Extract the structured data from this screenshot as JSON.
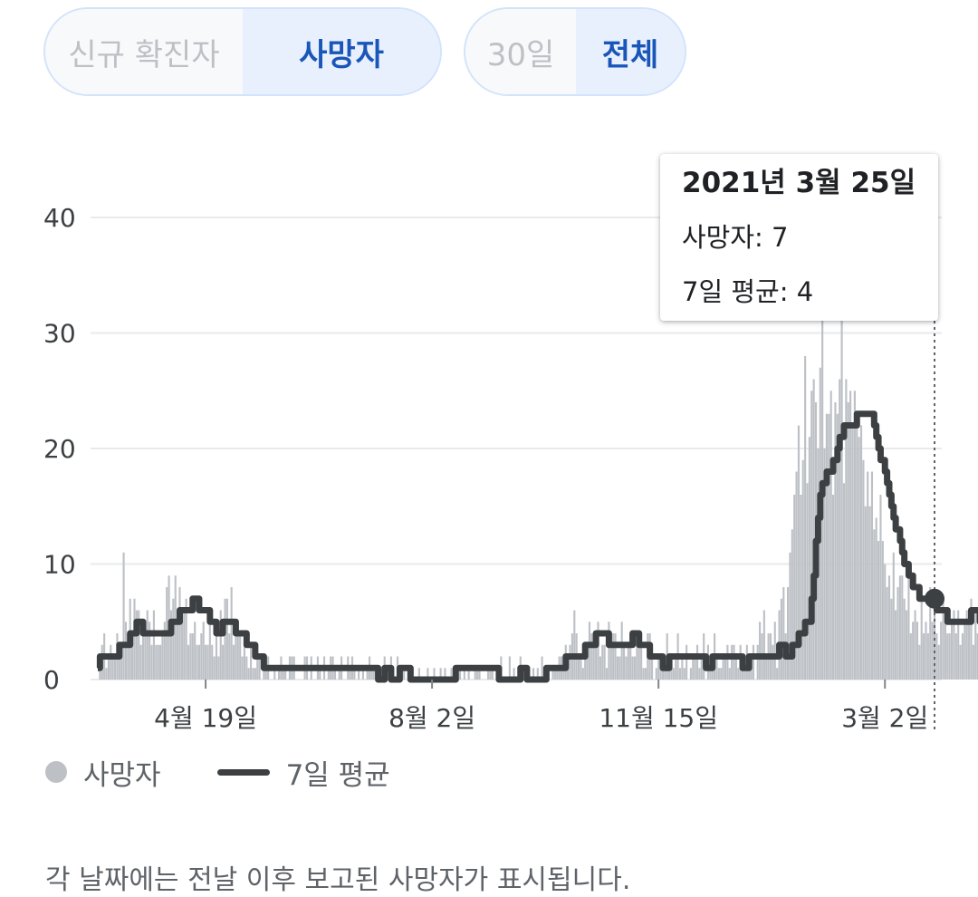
{
  "toggles": {
    "metric": [
      {
        "label": "신규 확진자",
        "selected": false
      },
      {
        "label": "사망자",
        "selected": true
      }
    ],
    "range": [
      {
        "label": "30일",
        "selected": false
      },
      {
        "label": "전체",
        "selected": true
      }
    ]
  },
  "tooltip": {
    "date": "2021년 3월 25일",
    "deaths_label": "사망자: 7",
    "avg_label": "7일 평균: 4"
  },
  "legend": {
    "deaths": "사망자",
    "avg": "7일 평균"
  },
  "note": "각 날짜에는 전날 이후 보고된 사망자가 표시됩니다.",
  "colors": {
    "bars": "#bdc1c6",
    "average_line": "#3c4043",
    "gridline": "#e8eaed",
    "selected_text": "#1a56b8"
  },
  "chart_data": {
    "type": "bar",
    "title": "",
    "xlabel": "",
    "ylabel": "",
    "ylim": [
      0,
      40
    ],
    "yticks": [
      "0",
      "10",
      "20",
      "30",
      "40"
    ],
    "xticks": [
      {
        "day": 50,
        "label": "4월 19일"
      },
      {
        "day": 155,
        "label": "8월 2일"
      },
      {
        "day": 260,
        "label": "11월 15일"
      },
      {
        "day": 365,
        "label": "3월 2일"
      }
    ],
    "day_range": [
      0,
      388
    ],
    "highlight_day": 388,
    "series": [
      {
        "name": "사망자",
        "kind": "bar",
        "values": [
          0,
          1,
          3,
          4,
          1,
          2,
          3,
          2,
          2,
          4,
          3,
          3,
          11,
          5,
          4,
          7,
          3,
          7,
          6,
          6,
          3,
          4,
          4,
          6,
          5,
          3,
          6,
          3,
          3,
          3,
          4,
          5,
          8,
          9,
          6,
          7,
          9,
          5,
          8,
          5,
          6,
          7,
          3,
          4,
          4,
          5,
          3,
          3,
          4,
          5,
          3,
          3,
          5,
          3,
          2,
          4,
          2,
          6,
          3,
          7,
          7,
          4,
          8,
          3,
          4,
          4,
          4,
          2,
          3,
          2,
          1,
          3,
          1,
          1,
          2,
          2,
          0,
          1,
          1,
          2,
          0,
          0,
          1,
          0,
          1,
          2,
          1,
          1,
          0,
          2,
          2,
          2,
          0,
          0,
          0,
          0,
          2,
          2,
          0,
          2,
          0,
          0,
          2,
          1,
          0,
          2,
          0,
          1,
          2,
          2,
          1,
          0,
          1,
          2,
          0,
          0,
          2,
          1,
          2,
          1,
          0,
          1,
          0,
          1,
          0,
          1,
          2,
          1,
          1,
          0,
          1,
          1,
          0,
          2,
          0,
          0,
          2,
          1,
          0,
          2,
          0,
          0,
          1,
          0,
          1,
          0,
          1,
          0,
          0,
          1,
          0,
          0,
          0,
          1,
          0,
          0,
          1,
          0,
          0,
          1,
          0,
          1,
          0,
          0,
          1,
          0,
          1,
          0,
          1,
          0,
          1,
          0,
          1,
          0,
          0,
          1,
          1,
          1,
          0,
          0,
          0,
          1,
          1,
          1,
          0,
          0,
          1,
          2,
          0,
          0,
          0,
          2,
          0,
          1,
          0,
          0,
          2,
          0,
          0,
          1,
          1,
          0,
          1,
          0,
          1,
          0,
          2,
          1,
          0,
          1,
          0,
          1,
          1,
          1,
          2,
          2,
          1,
          3,
          2,
          3,
          4,
          6,
          4,
          2,
          2,
          1,
          3,
          3,
          5,
          4,
          4,
          3,
          5,
          2,
          3,
          3,
          1,
          5,
          4,
          4,
          4,
          2,
          2,
          5,
          3,
          2,
          3,
          4,
          2,
          2,
          3,
          3,
          3,
          1,
          1,
          4,
          4,
          3,
          0,
          1,
          2,
          2,
          2,
          2,
          4,
          1,
          2,
          1,
          2,
          4,
          1,
          2,
          1,
          3,
          0,
          1,
          2,
          2,
          3,
          1,
          2,
          4,
          0,
          3,
          2,
          1,
          4,
          2,
          1,
          1,
          2,
          2,
          3,
          1,
          3,
          3,
          2,
          1,
          3,
          2,
          1,
          3,
          1,
          2,
          3,
          0,
          3,
          5,
          4,
          6,
          2,
          4,
          4,
          3,
          5,
          1,
          6,
          7,
          8,
          4,
          8,
          11,
          13,
          16,
          18,
          22,
          16,
          19,
          28,
          17,
          21,
          25,
          26,
          24,
          20,
          27,
          32,
          20,
          23,
          23,
          25,
          16,
          24,
          23,
          26,
          33,
          17,
          26,
          24,
          25,
          22,
          25,
          22,
          21,
          22,
          19,
          15,
          18,
          15,
          18,
          13,
          14,
          12,
          16,
          12,
          10,
          8,
          9,
          7,
          11,
          6,
          8,
          9,
          9,
          7,
          6,
          10,
          4,
          5,
          6,
          5,
          3,
          7,
          4,
          5,
          4,
          8,
          5,
          6,
          4,
          3,
          5,
          7,
          6,
          4,
          4,
          5,
          6,
          4,
          6,
          3,
          4,
          5,
          6,
          5,
          7,
          3,
          6,
          4,
          5,
          3,
          5,
          7,
          4,
          3,
          5,
          2,
          6,
          2,
          7
        ]
      },
      {
        "name": "7일 평균",
        "kind": "line",
        "values": [
          1,
          2,
          2,
          2,
          2,
          2,
          2,
          2,
          2,
          2,
          3,
          3,
          3,
          3,
          3,
          4,
          4,
          4,
          5,
          5,
          5,
          4,
          4,
          4,
          4,
          4,
          4,
          4,
          4,
          4,
          4,
          4,
          4,
          4,
          5,
          5,
          5,
          5,
          6,
          6,
          6,
          6,
          6,
          6,
          7,
          7,
          7,
          6,
          6,
          6,
          6,
          6,
          5,
          5,
          5,
          4,
          4,
          4,
          5,
          5,
          5,
          5,
          5,
          5,
          4,
          4,
          4,
          4,
          4,
          3,
          3,
          3,
          3,
          2,
          2,
          2,
          2,
          1,
          1,
          1,
          1,
          1,
          1,
          1,
          1,
          1,
          1,
          1,
          1,
          1,
          1,
          1,
          1,
          1,
          1,
          1,
          1,
          1,
          1,
          1,
          1,
          1,
          1,
          1,
          1,
          1,
          1,
          1,
          1,
          1,
          1,
          1,
          1,
          1,
          1,
          1,
          1,
          1,
          1,
          1,
          1,
          1,
          1,
          1,
          1,
          1,
          1,
          1,
          1,
          1,
          0,
          0,
          0,
          1,
          1,
          1,
          0,
          0,
          0,
          0,
          1,
          1,
          1,
          1,
          1,
          0,
          0,
          0,
          0,
          0,
          0,
          0,
          0,
          0,
          0,
          0,
          0,
          0,
          0,
          0,
          0,
          0,
          0,
          0,
          0,
          0,
          1,
          1,
          1,
          1,
          1,
          1,
          1,
          1,
          1,
          1,
          1,
          1,
          1,
          1,
          1,
          1,
          1,
          1,
          1,
          1,
          0,
          0,
          0,
          0,
          0,
          0,
          0,
          0,
          0,
          0,
          1,
          1,
          1,
          0,
          0,
          0,
          0,
          0,
          0,
          0,
          0,
          0,
          1,
          1,
          1,
          1,
          1,
          1,
          1,
          1,
          1,
          2,
          2,
          2,
          2,
          2,
          2,
          2,
          2,
          2,
          3,
          3,
          3,
          3,
          3,
          4,
          4,
          4,
          4,
          4,
          4,
          3,
          3,
          3,
          3,
          3,
          3,
          3,
          3,
          3,
          3,
          3,
          4,
          4,
          4,
          3,
          3,
          3,
          3,
          3,
          2,
          2,
          2,
          2,
          2,
          2,
          1,
          1,
          1,
          2,
          2,
          2,
          2,
          2,
          2,
          2,
          2,
          2,
          2,
          2,
          2,
          2,
          2,
          2,
          2,
          2,
          1,
          1,
          1,
          2,
          2,
          2,
          2,
          2,
          2,
          2,
          2,
          2,
          2,
          2,
          2,
          2,
          2,
          1,
          1,
          1,
          2,
          2,
          2,
          2,
          2,
          2,
          2,
          2,
          2,
          2,
          2,
          2,
          2,
          2,
          3,
          3,
          3,
          2,
          2,
          2,
          3,
          3,
          3,
          4,
          4,
          4,
          5,
          5,
          5,
          7,
          9,
          12,
          14,
          16,
          17,
          17,
          18,
          18,
          18,
          19,
          19,
          20,
          21,
          21,
          22,
          22,
          22,
          22,
          22,
          22,
          23,
          23,
          23,
          23,
          23,
          23,
          23,
          23,
          22,
          21,
          20,
          19,
          19,
          18,
          17,
          16,
          15,
          14,
          13,
          13,
          12,
          11,
          10,
          10,
          9,
          9,
          8,
          8,
          8,
          7,
          7,
          7,
          7,
          7,
          7,
          7,
          7,
          6,
          6,
          6,
          6,
          6,
          5,
          5,
          5,
          5,
          5,
          5,
          5,
          5,
          5,
          5,
          5,
          6,
          6,
          6,
          6,
          5,
          5,
          5,
          5,
          5,
          5,
          5,
          5,
          5,
          5,
          4,
          4,
          4,
          4,
          4
        ]
      }
    ],
    "legend_position": "bottom-left",
    "grid": true
  }
}
